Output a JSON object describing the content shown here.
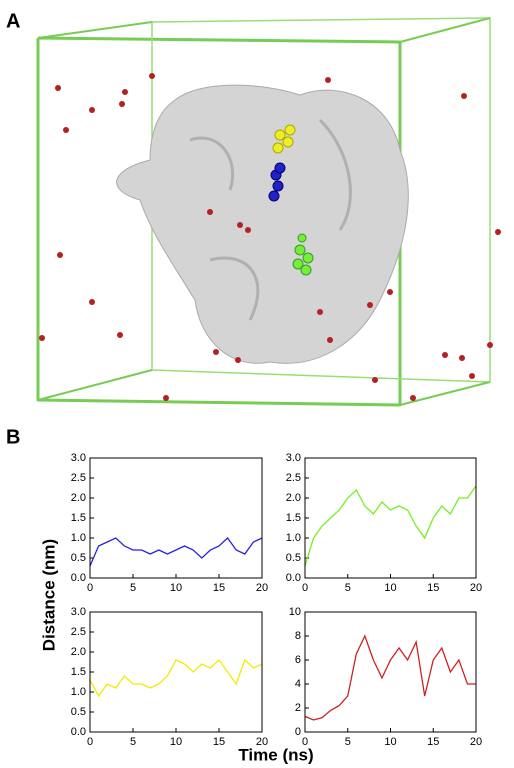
{
  "panel_labels": {
    "a": "A",
    "b": "B"
  },
  "axis_labels": {
    "y": "Distance (nm)",
    "x": "Time (ns)"
  },
  "chart_data": [
    {
      "type": "line",
      "color": "#2a22dd",
      "x": [
        0,
        1,
        2,
        3,
        4,
        5,
        6,
        7,
        8,
        9,
        10,
        11,
        12,
        13,
        14,
        15,
        16,
        17,
        18,
        19,
        20
      ],
      "values": [
        0.3,
        0.8,
        0.9,
        1.0,
        0.8,
        0.7,
        0.7,
        0.6,
        0.7,
        0.6,
        0.7,
        0.8,
        0.7,
        0.5,
        0.7,
        0.8,
        1.0,
        0.7,
        0.6,
        0.9,
        1.0
      ],
      "xlim": [
        0,
        20
      ],
      "xticks": [
        0,
        5,
        10,
        15,
        20
      ],
      "ylim": [
        0,
        3
      ],
      "yticks": [
        {
          "value": 0,
          "label": "0.0"
        },
        0.5,
        {
          "value": 1,
          "label": "1.0"
        },
        1.5,
        {
          "value": 2,
          "label": "2.0"
        },
        2.5,
        {
          "value": 3,
          "label": "3.0"
        }
      ]
    },
    {
      "type": "line",
      "color": "#77ee22",
      "x": [
        0,
        1,
        2,
        3,
        4,
        5,
        6,
        7,
        8,
        9,
        10,
        11,
        12,
        13,
        14,
        15,
        16,
        17,
        18,
        19,
        20
      ],
      "values": [
        0.3,
        1.0,
        1.3,
        1.5,
        1.7,
        2.0,
        2.2,
        1.8,
        1.6,
        1.9,
        1.7,
        1.8,
        1.7,
        1.3,
        1.0,
        1.5,
        1.8,
        1.6,
        2.0,
        2.0,
        2.3
      ],
      "xlim": [
        0,
        20
      ],
      "xticks": [
        0,
        5,
        10,
        15,
        20
      ],
      "ylim": [
        0,
        3
      ],
      "yticks": [
        {
          "value": 0,
          "label": "0.0"
        },
        0.5,
        {
          "value": 1,
          "label": "1.0"
        },
        1.5,
        {
          "value": 2,
          "label": "2.0"
        },
        2.5,
        {
          "value": 3,
          "label": "3.0"
        }
      ]
    },
    {
      "type": "line",
      "color": "#eeee00",
      "x": [
        0,
        1,
        2,
        3,
        4,
        5,
        6,
        7,
        8,
        9,
        10,
        11,
        12,
        13,
        14,
        15,
        16,
        17,
        18,
        19,
        20
      ],
      "values": [
        1.3,
        0.9,
        1.2,
        1.1,
        1.4,
        1.2,
        1.2,
        1.1,
        1.2,
        1.4,
        1.8,
        1.7,
        1.5,
        1.7,
        1.6,
        1.8,
        1.5,
        1.2,
        1.8,
        1.6,
        1.7
      ],
      "xlim": [
        0,
        20
      ],
      "xticks": [
        0,
        5,
        10,
        15,
        20
      ],
      "ylim": [
        0,
        3
      ],
      "yticks": [
        {
          "value": 0,
          "label": "0.0"
        },
        0.5,
        {
          "value": 1,
          "label": "1.0"
        },
        1.5,
        {
          "value": 2,
          "label": "2.0"
        },
        2.5,
        {
          "value": 3,
          "label": "3.0"
        }
      ]
    },
    {
      "type": "line",
      "color": "#cc2222",
      "x": [
        0,
        1,
        2,
        3,
        4,
        5,
        6,
        7,
        8,
        9,
        10,
        11,
        12,
        13,
        14,
        15,
        16,
        17,
        18,
        19,
        20
      ],
      "values": [
        1.3,
        1.0,
        1.2,
        1.8,
        2.2,
        3.0,
        6.5,
        8.0,
        6.0,
        4.5,
        6.0,
        7.0,
        6.0,
        7.5,
        3.0,
        6.0,
        7.0,
        5.0,
        6.0,
        4.0,
        4.0
      ],
      "xlim": [
        0,
        20
      ],
      "xticks": [
        0,
        5,
        10,
        15,
        20
      ],
      "ylim": [
        0,
        10
      ],
      "yticks": [
        0,
        2,
        4,
        6,
        8,
        10
      ]
    }
  ]
}
